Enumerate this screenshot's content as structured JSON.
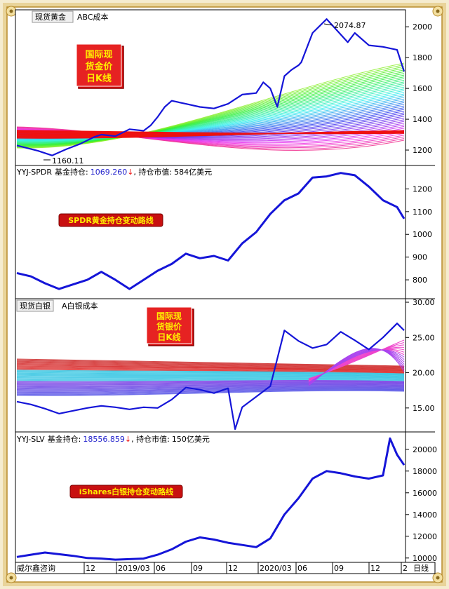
{
  "colors": {
    "price_line": "#1515d8",
    "frame_gold": "#c8a040",
    "badge_red": "#dd1111",
    "badge_text": "#ffee00",
    "axis_text": "#000000",
    "pink_ma": "#ee44cc",
    "red_band": "#ee1111",
    "value_blue": "#2222cc",
    "down_arrow": "#ee1111"
  },
  "panel1": {
    "tab1": "现货黄金",
    "tab2": "ABC成本",
    "badge": [
      "国际现",
      "货金价",
      "日K线"
    ],
    "peak_label": "2074.87",
    "low_label": "1160.11"
  },
  "panel2": {
    "header_name": "YYJ-SPDR",
    "header_hold": "基金持仓:",
    "header_value": "1069.260",
    "header_arrow": "↓",
    "header_mv": ", 持仓市值:",
    "header_mv_value": "584亿美元",
    "badge": "SPDR黄金持仓变动路线"
  },
  "panel3": {
    "tab1": "现货白银",
    "tab2": "A白银成本",
    "badge": [
      "国际现",
      "货银价",
      "日K线"
    ]
  },
  "panel4": {
    "header_name": "YYJ-SLV",
    "header_hold": "基金持仓:",
    "header_value": "18556.859",
    "header_arrow": "↓",
    "header_mv": ", 持仓市值:",
    "header_mv_value": "150亿美元",
    "badge": "iShares白银持仓变动路线"
  },
  "footer": {
    "brand": "威尔鑫咨询",
    "period": "日线",
    "ticks": [
      "12",
      "2019/03",
      "06",
      "09",
      "12",
      "2020/03",
      "06",
      "09",
      "12",
      "2"
    ]
  },
  "chart_data": [
    {
      "type": "line",
      "title": "现货黄金",
      "ylim": [
        1100,
        2110
      ],
      "yticks": [
        1200,
        1400,
        1600,
        1800,
        2000
      ],
      "series": [
        {
          "x": [
            0,
            1.5,
            2.5,
            3.5,
            4.5,
            5.5,
            6,
            7,
            8,
            9,
            9.5,
            10,
            10.5,
            11,
            12,
            13,
            14,
            15,
            16,
            17,
            17.5,
            18,
            18.5,
            19,
            19.5,
            20,
            20.2,
            21,
            22,
            23,
            23.5,
            24,
            25,
            26,
            27,
            27.5
          ],
          "values": [
            1230,
            1195,
            1165,
            1205,
            1240,
            1285,
            1300,
            1290,
            1335,
            1325,
            1360,
            1415,
            1480,
            1520,
            1500,
            1480,
            1470,
            1500,
            1560,
            1570,
            1640,
            1600,
            1480,
            1680,
            1720,
            1750,
            1770,
            1960,
            2050,
            1950,
            1900,
            1960,
            1880,
            1870,
            1850,
            1710
          ]
        }
      ]
    },
    {
      "type": "line",
      "title": "YYJ-SPDR",
      "ylim": [
        717,
        1303
      ],
      "yticks": [
        800,
        900,
        1000,
        1100,
        1200
      ],
      "series": [
        {
          "x": [
            0,
            1,
            2,
            3,
            4,
            5,
            6,
            7,
            8,
            9,
            10,
            11,
            12,
            13,
            14,
            15,
            16,
            17,
            18,
            19,
            20,
            21,
            22,
            23,
            24,
            25,
            26,
            27,
            27.5
          ],
          "values": [
            830,
            815,
            785,
            760,
            780,
            800,
            835,
            800,
            760,
            800,
            840,
            870,
            915,
            895,
            905,
            885,
            960,
            1010,
            1090,
            1150,
            1180,
            1250,
            1255,
            1270,
            1260,
            1210,
            1150,
            1120,
            1069
          ]
        }
      ]
    },
    {
      "type": "line",
      "title": "现货白银",
      "ylim": [
        11.6,
        30.5
      ],
      "yticks": [
        15.0,
        20.0,
        25.0,
        30.0
      ],
      "series": [
        {
          "x": [
            0,
            1,
            2,
            3,
            4,
            5,
            6,
            7,
            8,
            9,
            10,
            11,
            12,
            13,
            14,
            15,
            15.5,
            16,
            17,
            18,
            18.5,
            19,
            20,
            21,
            22,
            23,
            24,
            25,
            26,
            27,
            27.5
          ],
          "values": [
            15.9,
            15.5,
            14.9,
            14.2,
            14.6,
            15.0,
            15.3,
            15.1,
            14.8,
            15.1,
            15.0,
            16.2,
            17.9,
            17.6,
            17.1,
            17.8,
            12.0,
            15.1,
            16.6,
            18.1,
            22.0,
            26.0,
            24.5,
            23.5,
            24.0,
            25.8,
            24.6,
            23.3,
            25.0,
            27.0,
            26.0
          ]
        }
      ]
    },
    {
      "type": "line",
      "title": "YYJ-SLV",
      "ylim": [
        9600,
        21600
      ],
      "yticks": [
        10000,
        12000,
        14000,
        16000,
        18000,
        20000
      ],
      "series": [
        {
          "x": [
            0,
            1,
            2,
            3,
            4,
            5,
            6,
            7,
            8,
            9,
            10,
            11,
            12,
            13,
            14,
            15,
            16,
            17,
            18,
            19,
            20,
            21,
            22,
            23,
            24,
            25,
            26,
            26.5,
            27,
            27.5
          ],
          "values": [
            10100,
            10300,
            10500,
            10350,
            10200,
            10000,
            9950,
            9850,
            9900,
            9950,
            10300,
            10800,
            11500,
            11900,
            11700,
            11400,
            11200,
            11000,
            11800,
            14000,
            15500,
            17300,
            18000,
            17800,
            17500,
            17300,
            17600,
            21000,
            19500,
            18556
          ]
        }
      ]
    }
  ]
}
